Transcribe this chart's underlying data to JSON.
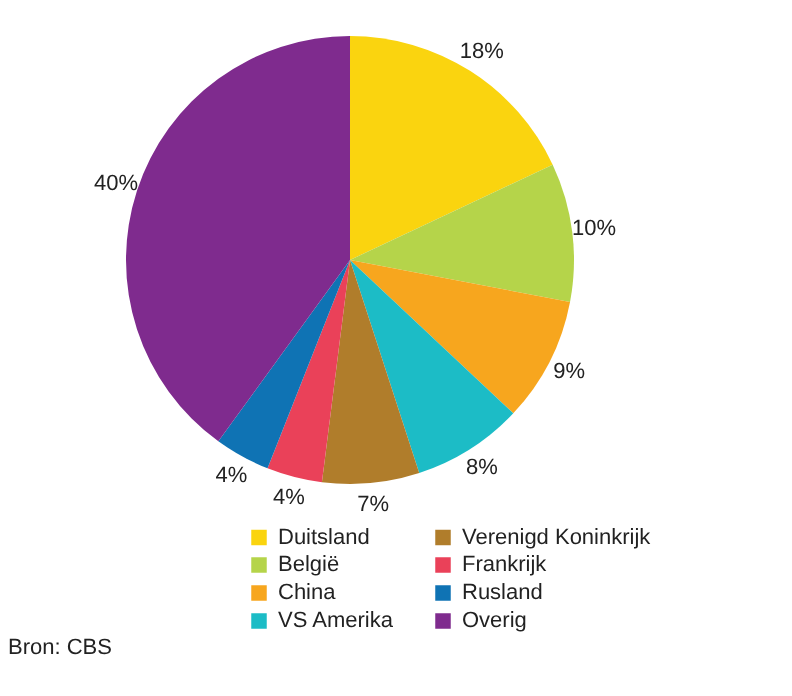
{
  "chart_data": {
    "type": "pie",
    "categories": [
      "Duitsland",
      "België",
      "China",
      "VS Amerika",
      "Verenigd Koninkrijk",
      "Frankrijk",
      "Rusland",
      "Overig"
    ],
    "values": [
      18,
      10,
      9,
      8,
      7,
      4,
      4,
      40
    ],
    "value_labels": [
      "18%",
      "10%",
      "9%",
      "8%",
      "7%",
      "4%",
      "4%",
      "40%"
    ],
    "colors": [
      "#fad40f",
      "#b5d44a",
      "#f7a61e",
      "#1cbcc6",
      "#b07d2b",
      "#ea4159",
      "#0f73b4",
      "#7f2b8e"
    ],
    "legend": "bottom",
    "annotations": [
      "Bron: CBS"
    ]
  }
}
